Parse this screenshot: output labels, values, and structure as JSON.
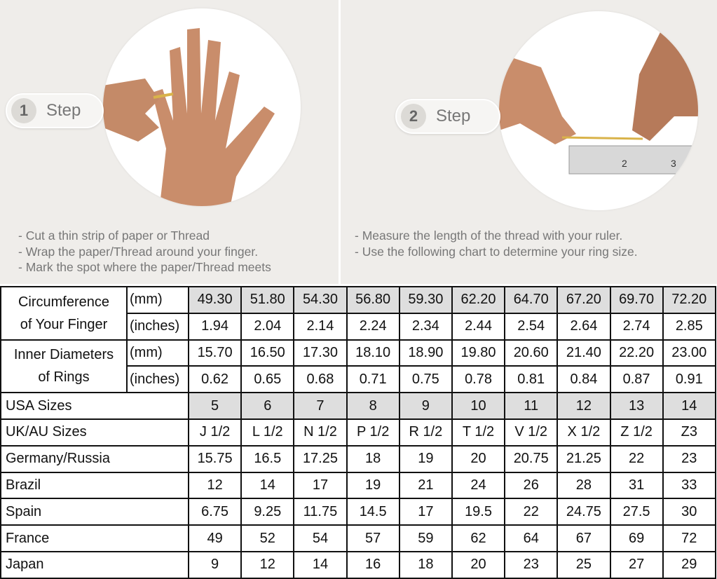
{
  "steps": [
    {
      "number": "1",
      "label": "Step",
      "notes": [
        "- Cut a thin strip of paper or Thread",
        "- Wrap the paper/Thread around your finger.",
        "- Mark the spot where the paper/Thread meets"
      ]
    },
    {
      "number": "2",
      "label": "Step",
      "notes": [
        "- Measure the length of the thread with your ruler.",
        "- Use the following chart to determine your ring size."
      ]
    }
  ],
  "table": {
    "circumference": {
      "label_line1": "Circumference",
      "label_line2": "of Your Finger",
      "mm_unit": "(mm)",
      "in_unit": "(inches)",
      "mm": [
        "49.30",
        "51.80",
        "54.30",
        "56.80",
        "59.30",
        "62.20",
        "64.70",
        "67.20",
        "69.70",
        "72.20"
      ],
      "inches": [
        "1.94",
        "2.04",
        "2.14",
        "2.24",
        "2.34",
        "2.44",
        "2.54",
        "2.64",
        "2.74",
        "2.85"
      ]
    },
    "diameter": {
      "label_line1": "Inner Diameters",
      "label_line2": "of Rings",
      "mm_unit": "(mm)",
      "in_unit": "(inches)",
      "mm": [
        "15.70",
        "16.50",
        "17.30",
        "18.10",
        "18.90",
        "19.80",
        "20.60",
        "21.40",
        "22.20",
        "23.00"
      ],
      "inches": [
        "0.62",
        "0.65",
        "0.68",
        "0.71",
        "0.75",
        "0.78",
        "0.81",
        "0.84",
        "0.87",
        "0.91"
      ]
    },
    "rows": [
      {
        "label": "USA Sizes",
        "values": [
          "5",
          "6",
          "7",
          "8",
          "9",
          "10",
          "11",
          "12",
          "13",
          "14"
        ]
      },
      {
        "label": "UK/AU Sizes",
        "values": [
          "J 1/2",
          "L 1/2",
          "N 1/2",
          "P 1/2",
          "R 1/2",
          "T 1/2",
          "V 1/2",
          "X 1/2",
          "Z 1/2",
          "Z3"
        ]
      },
      {
        "label": "Germany/Russia",
        "values": [
          "15.75",
          "16.5",
          "17.25",
          "18",
          "19",
          "20",
          "20.75",
          "21.25",
          "22",
          "23"
        ]
      },
      {
        "label": "Brazil",
        "values": [
          "12",
          "14",
          "17",
          "19",
          "21",
          "24",
          "26",
          "28",
          "31",
          "33"
        ]
      },
      {
        "label": "Spain",
        "values": [
          "6.75",
          "9.25",
          "11.75",
          "14.5",
          "17",
          "19.5",
          "22",
          "24.75",
          "27.5",
          "30"
        ]
      },
      {
        "label": "France",
        "values": [
          "49",
          "52",
          "54",
          "57",
          "59",
          "62",
          "64",
          "67",
          "69",
          "72"
        ]
      },
      {
        "label": "Japan",
        "values": [
          "9",
          "12",
          "14",
          "16",
          "18",
          "20",
          "23",
          "25",
          "27",
          "29"
        ]
      }
    ]
  }
}
